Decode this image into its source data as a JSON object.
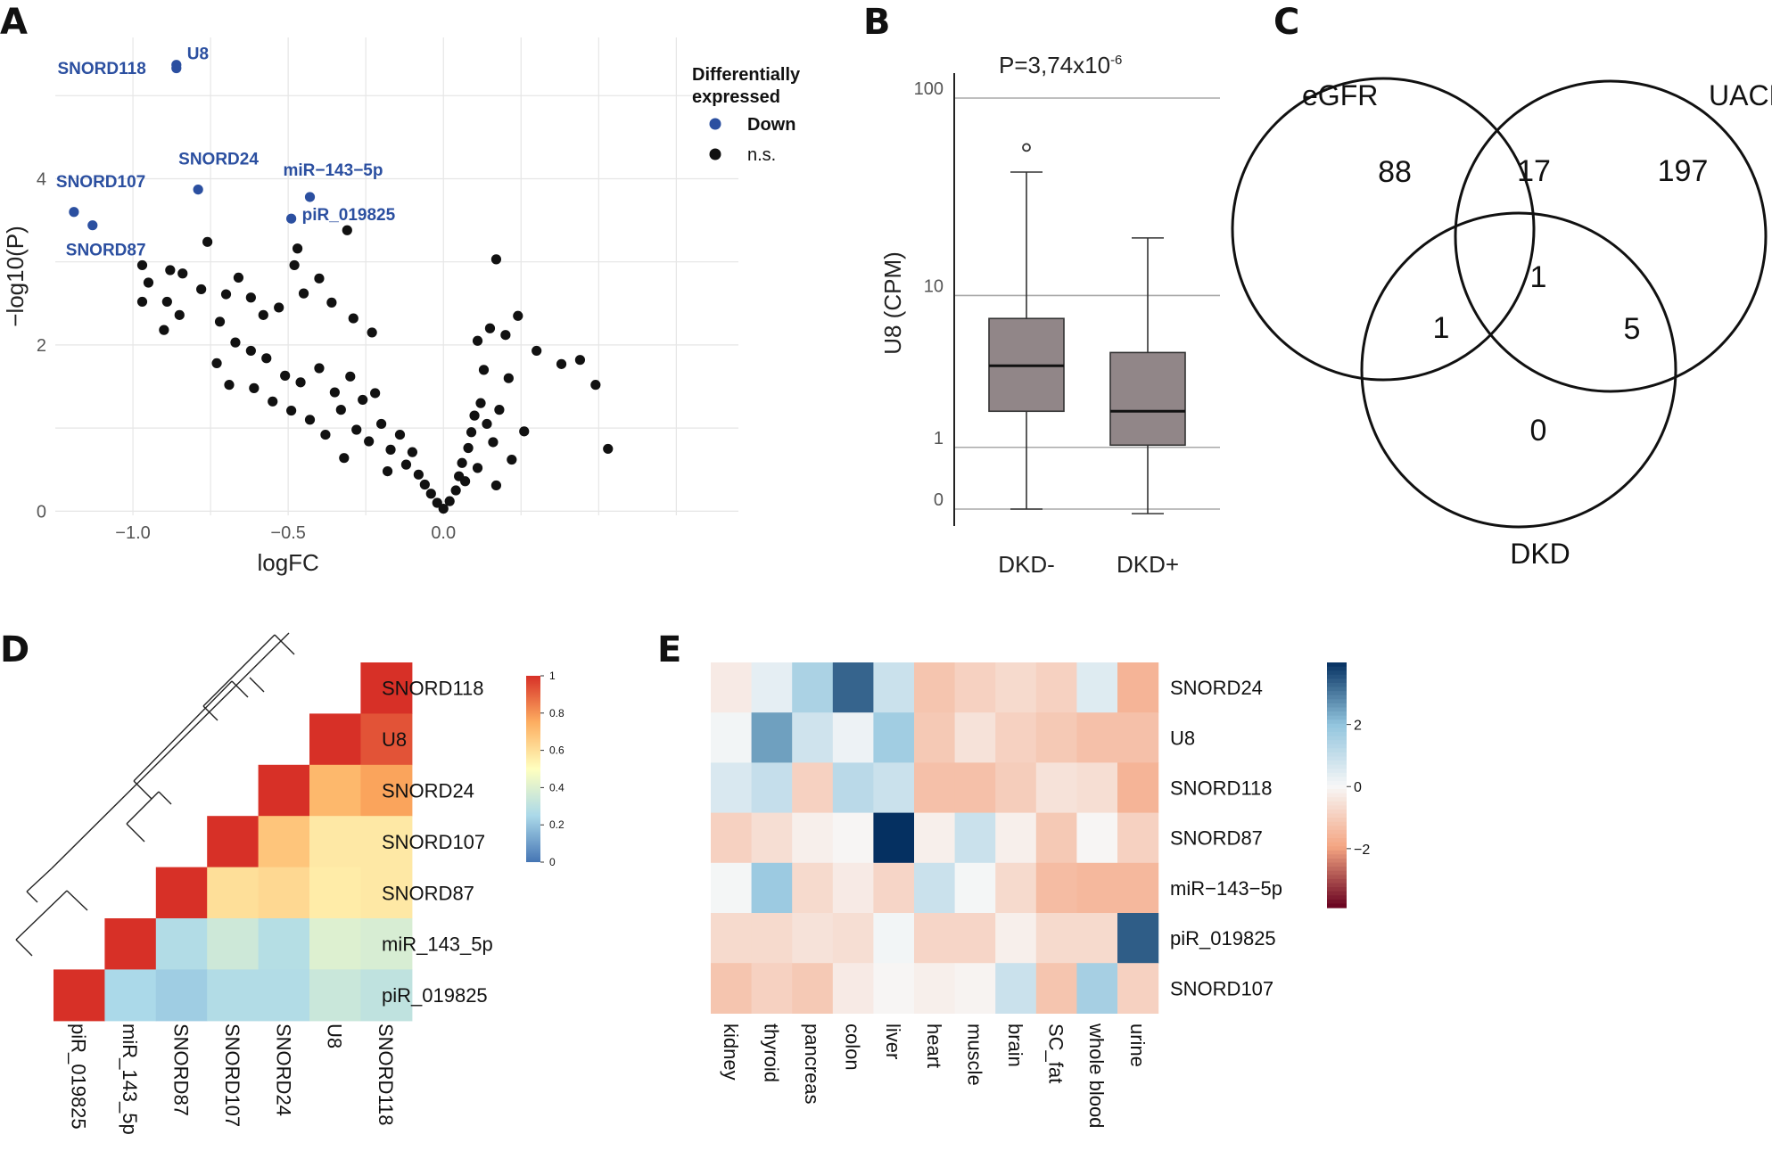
{
  "panels": {
    "a": "A",
    "b": "B",
    "c": "C",
    "d": "D",
    "e": "E"
  },
  "chart_data": [
    {
      "id": "A",
      "type": "scatter",
      "title": "",
      "xlabel": "logFC",
      "ylabel": "−log10(P)",
      "xlim": [
        -1.25,
        0.95
      ],
      "ylim": [
        -0.05,
        5.7
      ],
      "xticks": [
        -1.0,
        -0.5,
        0.0
      ],
      "xtick_labels": [
        "−1.0",
        "−0.5",
        "0.0"
      ],
      "yticks": [
        0,
        2,
        4
      ],
      "ytick_labels": [
        "0",
        "2",
        "4"
      ],
      "legend": {
        "title_line1": "Differentially",
        "title_line2": "expressed",
        "entries": [
          {
            "label": "Down",
            "color": "#2b4fa0"
          },
          {
            "label": "n.s.",
            "color": "#111111"
          }
        ],
        "placement": "top-right"
      },
      "series": [
        {
          "name": "Down",
          "color": "#2b4fa0",
          "points": [
            {
              "label": "U8",
              "x": -0.86,
              "y": 5.33
            },
            {
              "label": "SNORD118",
              "x": -0.86,
              "y": 5.37
            },
            {
              "label": "SNORD24",
              "x": -0.79,
              "y": 3.87
            },
            {
              "label": "miR−143−5p",
              "x": -0.43,
              "y": 3.78
            },
            {
              "label": "piR_019825",
              "x": -0.49,
              "y": 3.52
            },
            {
              "label": "SNORD107",
              "x": -1.19,
              "y": 3.6
            },
            {
              "label": "SNORD87",
              "x": -1.13,
              "y": 3.44
            }
          ]
        },
        {
          "name": "n.s.",
          "color": "#111111",
          "points": [
            {
              "x": -0.76,
              "y": 3.24
            },
            {
              "x": -0.47,
              "y": 3.16
            },
            {
              "x": -0.31,
              "y": 3.38
            },
            {
              "x": -0.48,
              "y": 2.96
            },
            {
              "x": -0.4,
              "y": 2.8
            },
            {
              "x": -0.97,
              "y": 2.96
            },
            {
              "x": -0.95,
              "y": 2.75
            },
            {
              "x": -0.97,
              "y": 2.52
            },
            {
              "x": 0.17,
              "y": 3.03
            },
            {
              "x": -0.88,
              "y": 2.9
            },
            {
              "x": -0.84,
              "y": 2.86
            },
            {
              "x": -0.78,
              "y": 2.67
            },
            {
              "x": -0.66,
              "y": 2.81
            },
            {
              "x": -0.7,
              "y": 2.61
            },
            {
              "x": -0.9,
              "y": 2.18
            },
            {
              "x": -0.89,
              "y": 2.52
            },
            {
              "x": -0.85,
              "y": 2.36
            },
            {
              "x": -0.72,
              "y": 2.28
            },
            {
              "x": -0.62,
              "y": 2.57
            },
            {
              "x": -0.58,
              "y": 2.36
            },
            {
              "x": -0.53,
              "y": 2.45
            },
            {
              "x": -0.45,
              "y": 2.62
            },
            {
              "x": -0.36,
              "y": 2.51
            },
            {
              "x": -0.29,
              "y": 2.32
            },
            {
              "x": -0.23,
              "y": 2.15
            },
            {
              "x": 0.11,
              "y": 2.05
            },
            {
              "x": 0.15,
              "y": 2.2
            },
            {
              "x": 0.2,
              "y": 2.12
            },
            {
              "x": 0.24,
              "y": 2.35
            },
            {
              "x": 0.3,
              "y": 1.93
            },
            {
              "x": 0.38,
              "y": 1.77
            },
            {
              "x": 0.44,
              "y": 1.82
            },
            {
              "x": 0.49,
              "y": 1.52
            },
            {
              "x": 0.53,
              "y": 0.75
            },
            {
              "x": 0.21,
              "y": 1.6
            },
            {
              "x": 0.13,
              "y": 1.7
            },
            {
              "x": -0.67,
              "y": 2.03
            },
            {
              "x": -0.62,
              "y": 1.93
            },
            {
              "x": -0.57,
              "y": 1.84
            },
            {
              "x": -0.51,
              "y": 1.63
            },
            {
              "x": -0.46,
              "y": 1.55
            },
            {
              "x": -0.4,
              "y": 1.72
            },
            {
              "x": -0.35,
              "y": 1.43
            },
            {
              "x": -0.3,
              "y": 1.62
            },
            {
              "x": -0.26,
              "y": 1.34
            },
            {
              "x": -0.22,
              "y": 1.42
            },
            {
              "x": -0.55,
              "y": 1.32
            },
            {
              "x": -0.49,
              "y": 1.21
            },
            {
              "x": -0.43,
              "y": 1.1
            },
            {
              "x": -0.38,
              "y": 0.92
            },
            {
              "x": -0.33,
              "y": 1.22
            },
            {
              "x": -0.28,
              "y": 0.98
            },
            {
              "x": -0.24,
              "y": 0.84
            },
            {
              "x": -0.2,
              "y": 1.05
            },
            {
              "x": -0.17,
              "y": 0.74
            },
            {
              "x": -0.14,
              "y": 0.92
            },
            {
              "x": -0.12,
              "y": 0.56
            },
            {
              "x": -0.1,
              "y": 0.71
            },
            {
              "x": -0.08,
              "y": 0.44
            },
            {
              "x": -0.06,
              "y": 0.32
            },
            {
              "x": -0.04,
              "y": 0.21
            },
            {
              "x": -0.02,
              "y": 0.1
            },
            {
              "x": 0.0,
              "y": 0.03
            },
            {
              "x": 0.02,
              "y": 0.12
            },
            {
              "x": 0.04,
              "y": 0.25
            },
            {
              "x": 0.05,
              "y": 0.42
            },
            {
              "x": 0.06,
              "y": 0.58
            },
            {
              "x": 0.08,
              "y": 0.76
            },
            {
              "x": 0.09,
              "y": 0.95
            },
            {
              "x": 0.1,
              "y": 1.15
            },
            {
              "x": 0.12,
              "y": 1.3
            },
            {
              "x": 0.14,
              "y": 1.05
            },
            {
              "x": 0.16,
              "y": 0.83
            },
            {
              "x": 0.18,
              "y": 1.22
            },
            {
              "x": 0.22,
              "y": 0.62
            },
            {
              "x": 0.26,
              "y": 0.96
            },
            {
              "x": -0.73,
              "y": 1.78
            },
            {
              "x": -0.69,
              "y": 1.52
            },
            {
              "x": -0.61,
              "y": 1.48
            },
            {
              "x": -0.32,
              "y": 0.64
            },
            {
              "x": -0.18,
              "y": 0.48
            },
            {
              "x": 0.07,
              "y": 0.36
            },
            {
              "x": 0.11,
              "y": 0.52
            },
            {
              "x": 0.17,
              "y": 0.31
            }
          ]
        }
      ]
    },
    {
      "id": "B",
      "type": "box",
      "title": "P=3,74x10",
      "title_exponent": "-6",
      "xlabel": "",
      "ylabel": "U8 (CPM)",
      "y_scale": "log1p",
      "yticks": [
        0,
        1,
        10,
        100
      ],
      "ytick_labels": [
        "0",
        "1",
        "10",
        "100"
      ],
      "categories": [
        "DKD-",
        "DKD+"
      ],
      "boxes": [
        {
          "category": "DKD-",
          "min": 0.0,
          "q1": 2.0,
          "median": 4.0,
          "q3": 7.5,
          "max": 43,
          "outliers": [
            57
          ]
        },
        {
          "category": "DKD+",
          "min": -0.05,
          "q1": 1.05,
          "median": 2.0,
          "q3": 4.8,
          "max": 20,
          "outliers": []
        }
      ],
      "box_color": "#918688"
    },
    {
      "id": "C",
      "type": "venn",
      "sets": [
        "eGFR",
        "UACR",
        "DKD"
      ],
      "regions": {
        "eGFR_only": "88",
        "eGFR_UACR": "17",
        "UACR_only": "197",
        "all": "1",
        "eGFR_DKD": "1",
        "UACR_DKD": "5",
        "DKD_only": "0"
      }
    },
    {
      "id": "D",
      "type": "heatmap",
      "subtype": "correlation-lower-triangle",
      "rows": [
        "SNORD118",
        "U8",
        "SNORD24",
        "SNORD107",
        "SNORD87",
        "miR_143_5p",
        "piR_019825"
      ],
      "columns": [
        "piR_019825",
        "miR_143_5p",
        "SNORD87",
        "SNORD107",
        "SNORD24",
        "U8",
        "SNORD118"
      ],
      "values": [
        [
          null,
          null,
          null,
          null,
          null,
          null,
          1.0
        ],
        [
          null,
          null,
          null,
          null,
          null,
          1.0,
          0.93
        ],
        [
          null,
          null,
          null,
          null,
          1.0,
          0.72,
          0.77
        ],
        [
          null,
          null,
          null,
          1.0,
          0.68,
          0.57,
          0.57
        ],
        [
          null,
          null,
          1.0,
          0.6,
          0.62,
          0.56,
          0.57
        ],
        [
          null,
          1.0,
          0.27,
          0.35,
          0.28,
          0.4,
          0.38
        ],
        [
          1.0,
          0.25,
          0.22,
          0.27,
          0.27,
          0.34,
          0.31
        ]
      ],
      "colorbar": {
        "min": 0,
        "max": 1,
        "ticks": [
          "0",
          "0.2",
          "0.4",
          "0.6",
          "0.8",
          "1"
        ]
      }
    },
    {
      "id": "E",
      "type": "heatmap",
      "rows": [
        "SNORD24",
        "U8",
        "SNORD118",
        "SNORD87",
        "miR−143−5p",
        "piR_019825",
        "SNORD107"
      ],
      "columns": [
        "kidney",
        "thyroid",
        "pancreas",
        "colon",
        "liver",
        "heart",
        "muscle",
        "brain",
        "SC_fat",
        "whole blood",
        "urine"
      ],
      "values": [
        [
          -0.3,
          0.35,
          1.5,
          3.3,
          0.9,
          -1.2,
          -0.9,
          -0.7,
          -0.9,
          0.5,
          -1.6
        ],
        [
          0.1,
          2.5,
          0.8,
          0.2,
          1.7,
          -1.1,
          -0.5,
          -0.9,
          -1.1,
          -1.3,
          -1.3
        ],
        [
          0.6,
          1.0,
          -0.9,
          1.2,
          0.9,
          -1.3,
          -1.3,
          -1.0,
          -0.5,
          -0.6,
          -1.6
        ],
        [
          -0.9,
          -0.6,
          -0.2,
          -0.05,
          4.0,
          -0.2,
          0.9,
          -0.2,
          -1.1,
          -0.05,
          -0.9
        ],
        [
          0.05,
          1.8,
          -0.7,
          -0.3,
          -0.8,
          0.9,
          0.05,
          -0.7,
          -1.4,
          -1.5,
          -1.5
        ],
        [
          -0.7,
          -0.7,
          -0.5,
          -0.6,
          0.1,
          -0.8,
          -0.8,
          -0.2,
          -0.7,
          -0.7,
          3.4
        ],
        [
          -1.2,
          -0.9,
          -1.1,
          -0.3,
          -0.05,
          -0.2,
          -0.1,
          0.9,
          -1.2,
          1.6,
          -0.9
        ]
      ],
      "colorbar": {
        "min": -3.9,
        "max": 4.0,
        "ticks": [
          "2",
          "0",
          "−2"
        ]
      }
    }
  ]
}
